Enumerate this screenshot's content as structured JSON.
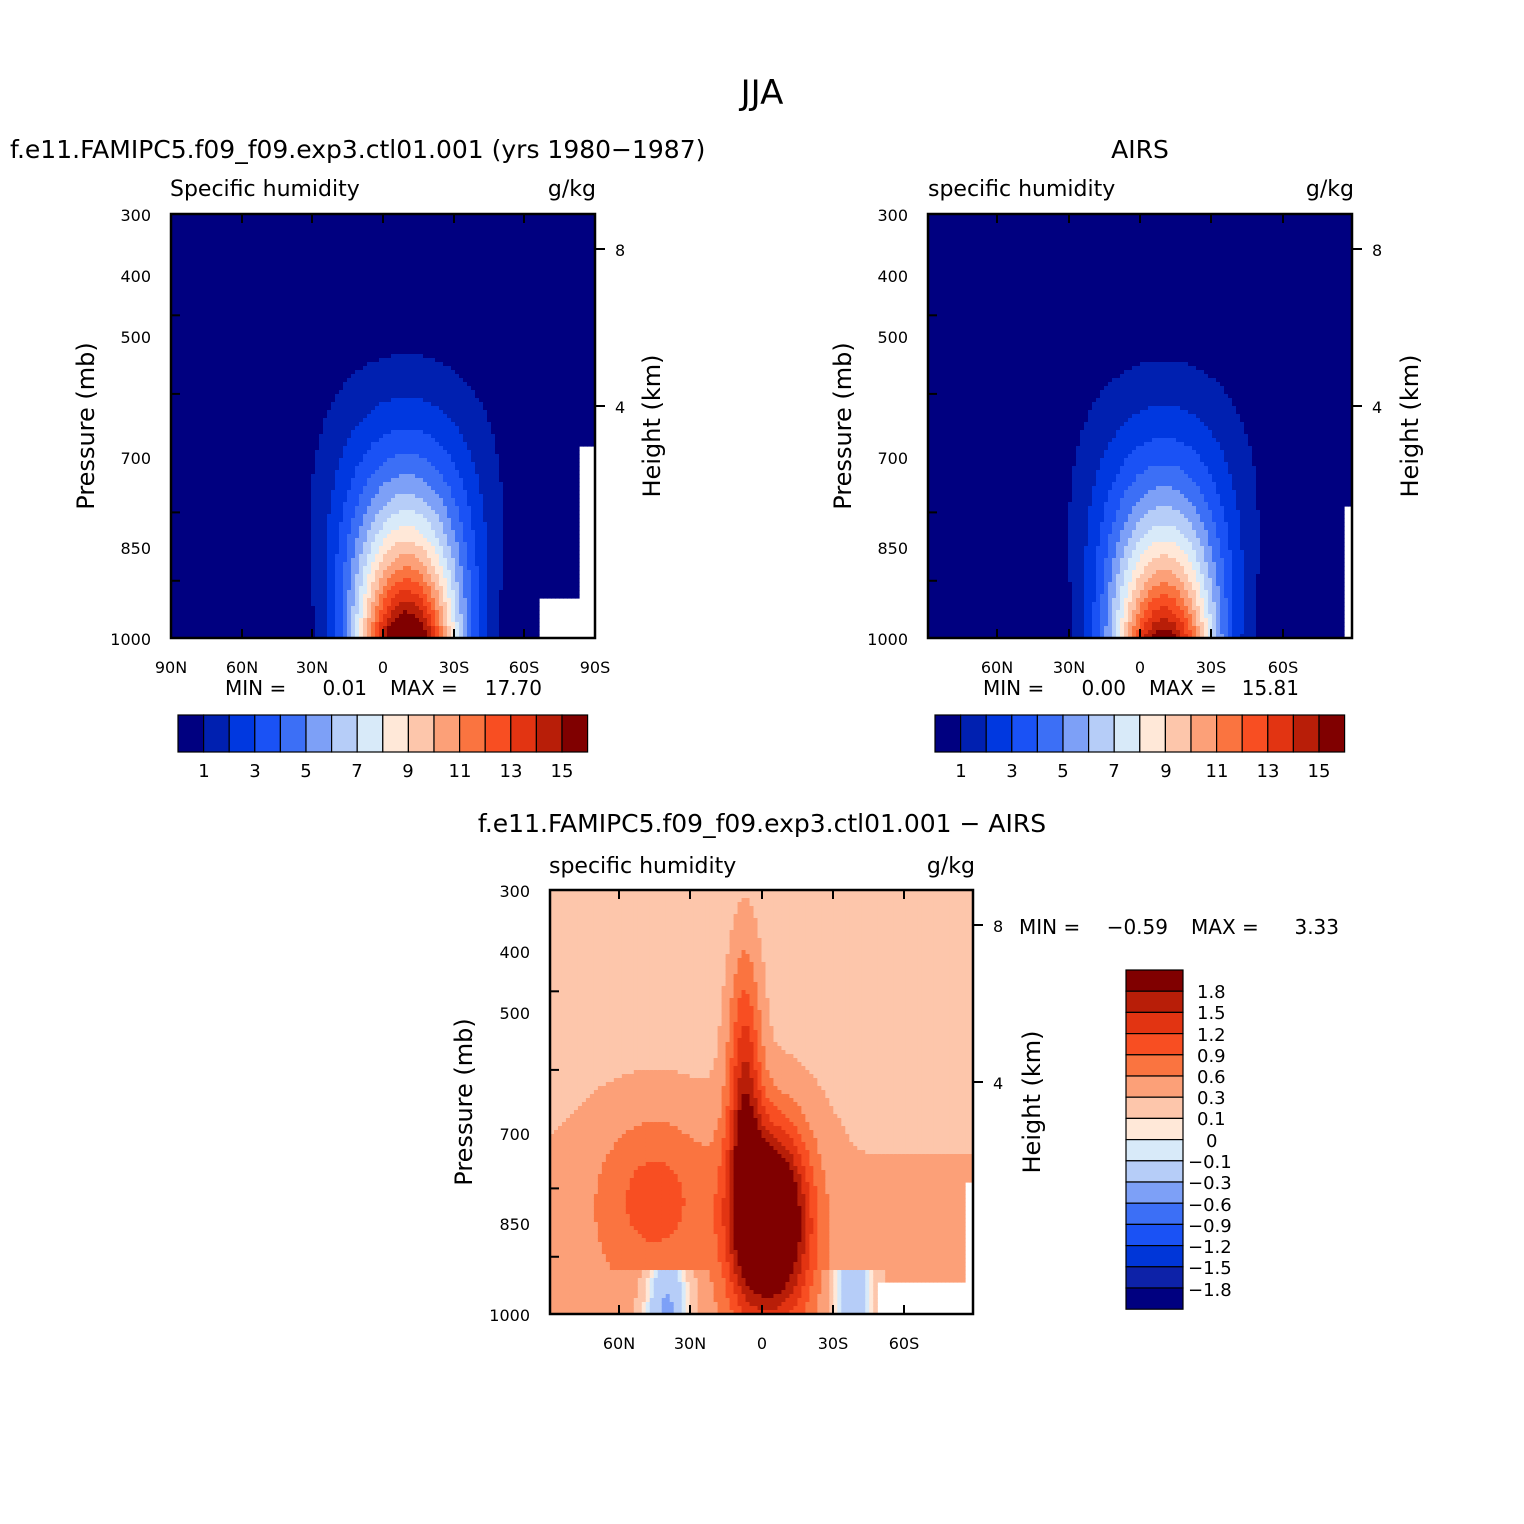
{
  "figure": {
    "title": "JJA"
  },
  "colors": {
    "levels15": [
      "#000080",
      "#0020b0",
      "#0038e0",
      "#1a52f5",
      "#3c6ff6",
      "#7da0f7",
      "#b6cdf8",
      "#d8eaf9",
      "#ffe8d8",
      "#fdc6ab",
      "#fca078",
      "#fa7440",
      "#f84e22",
      "#e23412",
      "#b81e08",
      "#800000"
    ],
    "diff": [
      "#000080",
      "#0d22a8",
      "#0036d8",
      "#1a52f5",
      "#3c6ff6",
      "#7da0f7",
      "#b6cdf8",
      "#d8eaf9",
      "#ffe8d8",
      "#fdc6ab",
      "#fca078",
      "#fa7440",
      "#f84e22",
      "#e23412",
      "#b81e08",
      "#800000"
    ]
  },
  "chart_data": [
    {
      "type": "heatmap",
      "id": "model",
      "title": "f.e11.FAMIPC5.f09_f09.exp3.ctl01.001 (yrs 1980−1987)",
      "subtitle_left": "Specific humidity",
      "subtitle_right": "g/kg",
      "ylabel": "Pressure (mb)",
      "ylabel_right": "Height (km)",
      "y_ticks": [
        "300",
        "400",
        "500",
        "700",
        "850",
        "1000"
      ],
      "y_right_ticks": [
        "8",
        "4"
      ],
      "x_ticks": [
        "90N",
        "60N",
        "30N",
        "0",
        "30S",
        "60S",
        "90S"
      ],
      "min_label": "MIN =",
      "min_value": "0.01",
      "max_label": "MAX =",
      "max_value": "17.70",
      "colorbar_labels": [
        "1",
        "3",
        "5",
        "7",
        "9",
        "11",
        "13",
        "15"
      ],
      "peak": 17.7,
      "peak_lat": -10
    },
    {
      "type": "heatmap",
      "id": "obs",
      "title": "AIRS",
      "subtitle_left": "specific humidity",
      "subtitle_right": "g/kg",
      "ylabel": "Pressure (mb)",
      "ylabel_right": "Height (km)",
      "y_ticks": [
        "300",
        "400",
        "500",
        "700",
        "850",
        "1000"
      ],
      "y_right_ticks": [
        "8",
        "4"
      ],
      "x_ticks": [
        "60N",
        "30N",
        "0",
        "30S",
        "60S"
      ],
      "min_label": "MIN =",
      "min_value": "0.00",
      "max_label": "MAX =",
      "max_value": "15.81",
      "colorbar_labels": [
        "1",
        "3",
        "5",
        "7",
        "9",
        "11",
        "13",
        "15"
      ],
      "peak": 15.8,
      "peak_lat": -10
    },
    {
      "type": "heatmap",
      "id": "diff",
      "title": "f.e11.FAMIPC5.f09_f09.exp3.ctl01.001 − AIRS",
      "subtitle_left": "specific humidity",
      "subtitle_right": "g/kg",
      "ylabel": "Pressure (mb)",
      "ylabel_right": "Height (km)",
      "y_ticks": [
        "300",
        "400",
        "500",
        "700",
        "850",
        "1000"
      ],
      "y_right_ticks": [
        "8",
        "4"
      ],
      "x_ticks": [
        "60N",
        "30N",
        "0",
        "30S",
        "60S"
      ],
      "min_label": "MIN =",
      "min_value": "−0.59",
      "max_label": "MAX =",
      "max_value": "3.33",
      "colorbar_labels": [
        "1.8",
        "1.5",
        "1.2",
        "0.9",
        "0.6",
        "0.3",
        "0.1",
        "0",
        "−0.1",
        "−0.3",
        "−0.6",
        "−0.9",
        "−1.2",
        "−1.5",
        "−1.8"
      ]
    }
  ]
}
